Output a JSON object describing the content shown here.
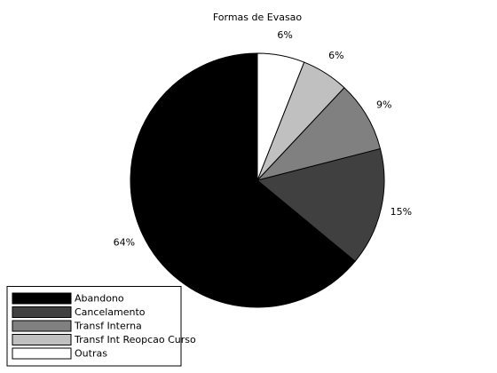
{
  "chart_data": {
    "type": "pie",
    "title": "Formas de Evasao",
    "categories": [
      "Abandono",
      "Cancelamento",
      "Transf Interna",
      "Transf Int Reopcao Curso",
      "Outras"
    ],
    "values": [
      64,
      15,
      9,
      6,
      6
    ],
    "value_labels": [
      "64%",
      "15%",
      "9%",
      "6%",
      "6%"
    ],
    "colors": [
      "#000000",
      "#404040",
      "#808080",
      "#c0c0c0",
      "#ffffff"
    ],
    "start_angle": 90,
    "direction": "counterclockwise",
    "legend": "southwest"
  }
}
